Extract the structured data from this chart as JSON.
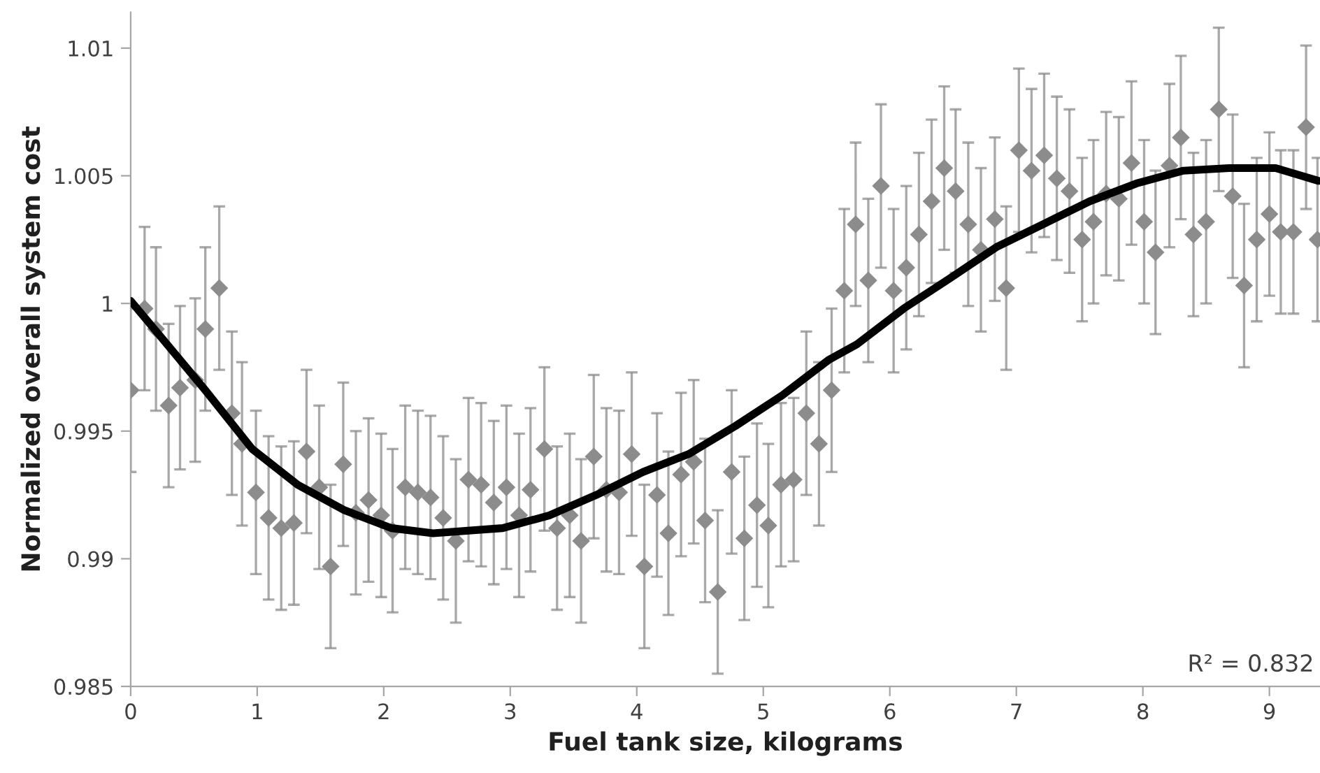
{
  "chart_data": {
    "type": "scatter",
    "xlabel": "Fuel tank size, kilograms",
    "ylabel": "Normalized overall system cost",
    "annotations": [
      "R² = 0.832"
    ],
    "xlim": [
      0,
      9.4
    ],
    "xticks": [
      0,
      1,
      2,
      3,
      4,
      5,
      6,
      7,
      8,
      9
    ],
    "ylim": [
      0.985,
      1.0114
    ],
    "yticks": [
      0.985,
      0.99,
      0.995,
      1,
      1.005,
      1.01
    ],
    "grid": false,
    "legend": false,
    "marker": "diamond",
    "series": [
      {
        "color": "#8c8c8c",
        "x": [
          0,
          0.11,
          0.2,
          0.3,
          0.39,
          0.51,
          0.59,
          0.7,
          0.8,
          0.88,
          0.99,
          1.09,
          1.19,
          1.29,
          1.39,
          1.49,
          1.58,
          1.68,
          1.78,
          1.88,
          1.98,
          2.07,
          2.17,
          2.27,
          2.37,
          2.47,
          2.57,
          2.67,
          2.77,
          2.87,
          2.97,
          3.07,
          3.16,
          3.27,
          3.37,
          3.47,
          3.56,
          3.66,
          3.76,
          3.86,
          3.96,
          4.06,
          4.16,
          4.25,
          4.35,
          4.45,
          4.54,
          4.64,
          4.75,
          4.85,
          4.95,
          5.04,
          5.14,
          5.24,
          5.34,
          5.44,
          5.54,
          5.64,
          5.73,
          5.83,
          5.93,
          6.03,
          6.13,
          6.23,
          6.33,
          6.43,
          6.52,
          6.62,
          6.72,
          6.83,
          6.92,
          7.02,
          7.12,
          7.22,
          7.32,
          7.42,
          7.52,
          7.61,
          7.71,
          7.81,
          7.91,
          8.01,
          8.1,
          8.21,
          8.3,
          8.4,
          8.5,
          8.6,
          8.71,
          8.8,
          8.9,
          9.0,
          9.09,
          9.19,
          9.29,
          9.38
        ],
        "values": [
          0.9966,
          0.9998,
          0.999,
          0.996,
          0.9967,
          0.997,
          0.999,
          1.0006,
          0.9957,
          0.9945,
          0.9926,
          0.9916,
          0.9912,
          0.9914,
          0.9942,
          0.9928,
          0.9897,
          0.9937,
          0.9918,
          0.9923,
          0.9917,
          0.9911,
          0.9928,
          0.9926,
          0.9924,
          0.9916,
          0.9907,
          0.9931,
          0.9929,
          0.9922,
          0.9928,
          0.9917,
          0.9927,
          0.9943,
          0.9912,
          0.9917,
          0.9907,
          0.994,
          0.9927,
          0.9926,
          0.9941,
          0.9897,
          0.9925,
          0.991,
          0.9933,
          0.9938,
          0.9915,
          0.9887,
          0.9934,
          0.9908,
          0.9921,
          0.9913,
          0.9929,
          0.9931,
          0.9957,
          0.9945,
          0.9966,
          1.0005,
          1.0031,
          1.0009,
          1.0046,
          1.0005,
          1.0014,
          1.0027,
          1.004,
          1.0053,
          1.0044,
          1.0031,
          1.0021,
          1.0033,
          1.0006,
          1.006,
          1.0052,
          1.0058,
          1.0049,
          1.0044,
          1.0025,
          1.0032,
          1.0043,
          1.0041,
          1.0055,
          1.0032,
          1.002,
          1.0054,
          1.0065,
          1.0027,
          1.0032,
          1.0076,
          1.0042,
          1.0007,
          1.0025,
          1.0035,
          1.0028,
          1.0028,
          1.0069,
          1.0025
        ],
        "errors": [
          0.0032,
          0.0032,
          0.0032,
          0.0032,
          0.0032,
          0.0032,
          0.0032,
          0.0032,
          0.0032,
          0.0032,
          0.0032,
          0.0032,
          0.0032,
          0.0032,
          0.0032,
          0.0032,
          0.0032,
          0.0032,
          0.0032,
          0.0032,
          0.0032,
          0.0032,
          0.0032,
          0.0032,
          0.0032,
          0.0032,
          0.0032,
          0.0032,
          0.0032,
          0.0032,
          0.0032,
          0.0032,
          0.0032,
          0.0032,
          0.0032,
          0.0032,
          0.0032,
          0.0032,
          0.0032,
          0.0032,
          0.0032,
          0.0032,
          0.0032,
          0.0032,
          0.0032,
          0.0032,
          0.0032,
          0.0032,
          0.0032,
          0.0032,
          0.0032,
          0.0032,
          0.0032,
          0.0032,
          0.0032,
          0.0032,
          0.0032,
          0.0032,
          0.0032,
          0.0032,
          0.0032,
          0.0032,
          0.0032,
          0.0032,
          0.0032,
          0.0032,
          0.0032,
          0.0032,
          0.0032,
          0.0032,
          0.0032,
          0.0032,
          0.0032,
          0.0032,
          0.0032,
          0.0032,
          0.0032,
          0.0032,
          0.0032,
          0.0032,
          0.0032,
          0.0032,
          0.0032,
          0.0032,
          0.0032,
          0.0032,
          0.0032,
          0.0032,
          0.0032,
          0.0032,
          0.0032,
          0.0032,
          0.0032,
          0.0032,
          0.0032,
          0.0032
        ]
      },
      {
        "type": "line",
        "color": "#000000",
        "marker": "none",
        "line_style": "solid",
        "x": [
          0,
          0.22,
          0.59,
          0.96,
          1.32,
          1.69,
          2.06,
          2.39,
          2.94,
          3.31,
          3.68,
          4.05,
          4.41,
          4.78,
          5.15,
          5.52,
          5.74,
          6.11,
          6.48,
          6.84,
          7.21,
          7.58,
          7.95,
          8.32,
          8.68,
          9.05,
          9.39
        ],
        "values": [
          1.0001,
          0.9988,
          0.9966,
          0.9943,
          0.9929,
          0.9919,
          0.9912,
          0.991,
          0.9912,
          0.9917,
          0.9925,
          0.9934,
          0.9941,
          0.9952,
          0.9964,
          0.9978,
          0.9984,
          0.9998,
          1.001,
          1.0022,
          1.0031,
          1.004,
          1.0047,
          1.0052,
          1.0053,
          1.0053,
          1.0048
        ]
      }
    ]
  }
}
